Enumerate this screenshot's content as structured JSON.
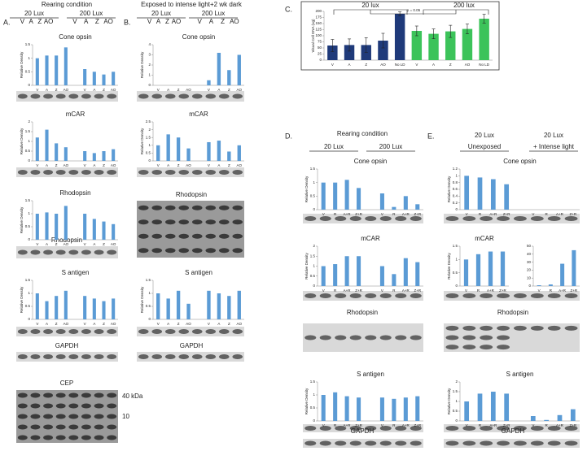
{
  "headers": [
    {
      "label": "A.",
      "title": "Rearing condition",
      "groups": [
        "20 Lux",
        "200 Lux"
      ],
      "lanes": [
        "V",
        "A",
        "Z",
        "AO"
      ]
    },
    {
      "label": "B.",
      "title": "Exposed to intense light+2 wk dark",
      "groups": [
        "20 Lux",
        "200 Lux"
      ],
      "lanes": [
        "V",
        "A",
        "Z",
        "AO"
      ]
    },
    {
      "label": "C."
    },
    {
      "label": "D.",
      "title": "Rearing condition",
      "groups": [
        "20 Lux",
        "200 Lux"
      ]
    },
    {
      "label": "E.",
      "groups": [
        "20 Lux",
        "20 Lux"
      ],
      "subgroups": [
        "Unexposed",
        "+ Intense light"
      ]
    }
  ],
  "blot_labels": [
    "Rhodopsin",
    "GAPDH",
    "CEP",
    "Rhodopsin",
    "GAPDH",
    "Rhodopsin",
    "GAPDH",
    "Rhodopsin",
    "GAPDH"
  ],
  "markers": [
    "40 kDa",
    "10"
  ],
  "chart_data": [
    {
      "type": "bar",
      "title": "Cone opsin",
      "ylabel": "Relative Density",
      "categories": [
        "V",
        "A",
        "Z",
        "AO",
        "V",
        "A",
        "Z",
        "AO"
      ],
      "values": [
        1.0,
        1.1,
        1.1,
        1.4,
        0.6,
        0.5,
        0.4,
        0.5
      ],
      "ylim": [
        0,
        1.5
      ],
      "yticks": [
        0,
        0.5,
        1,
        1.5
      ],
      "color": "#5b9bd5"
    },
    {
      "type": "bar",
      "title": "mCAR",
      "ylabel": "Relative Density",
      "categories": [
        "V",
        "A",
        "Z",
        "AO",
        "V",
        "A",
        "Z",
        "AO"
      ],
      "values": [
        1.2,
        1.6,
        0.9,
        0.7,
        0.5,
        0.4,
        0.5,
        0.6
      ],
      "ylim": [
        0,
        2
      ],
      "yticks": [
        0,
        0.5,
        1,
        1.5,
        2
      ],
      "color": "#5b9bd5"
    },
    {
      "type": "bar",
      "title": "Rhodopsin",
      "ylabel": "Relative Density",
      "categories": [
        "V",
        "A",
        "Z",
        "AO",
        "V",
        "A",
        "Z",
        "AO"
      ],
      "values": [
        1.0,
        1.05,
        1.0,
        1.3,
        1.0,
        0.8,
        0.7,
        0.6
      ],
      "ylim": [
        0,
        1.5
      ],
      "yticks": [
        0,
        0.5,
        1,
        1.5
      ],
      "color": "#5b9bd5"
    },
    {
      "type": "bar",
      "title": "S antigen",
      "ylabel": "Relative Density",
      "categories": [
        "V",
        "A",
        "Z",
        "AO",
        "V",
        "A",
        "Z",
        "AO"
      ],
      "values": [
        1.0,
        0.7,
        0.9,
        1.1,
        0.9,
        0.8,
        0.7,
        0.8
      ],
      "ylim": [
        0,
        1.5
      ],
      "yticks": [
        0,
        0.5,
        1,
        1.5
      ],
      "color": "#5b9bd5"
    },
    {
      "type": "bar",
      "title": "Cone opsin",
      "ylabel": "Relative Density",
      "categories": [
        "V",
        "A",
        "Z",
        "AO",
        "V",
        "A",
        "Z",
        "AO"
      ],
      "values": [
        0,
        0,
        0,
        0,
        0.5,
        3.2,
        1.5,
        3.0
      ],
      "ylim": [
        0,
        4
      ],
      "yticks": [
        0,
        1,
        2,
        3,
        4
      ],
      "color": "#5b9bd5"
    },
    {
      "type": "bar",
      "title": "mCAR",
      "ylabel": "Relative Density",
      "categories": [
        "V",
        "A",
        "Z",
        "AO",
        "V",
        "A",
        "Z",
        "AO"
      ],
      "values": [
        1.0,
        1.7,
        1.5,
        0.8,
        1.2,
        1.3,
        0.6,
        1.0
      ],
      "ylim": [
        0,
        2.5
      ],
      "yticks": [
        0,
        0.5,
        1,
        1.5,
        2,
        2.5
      ],
      "color": "#5b9bd5"
    },
    {
      "type": "bar",
      "title": "S antigen",
      "ylabel": "Relative Density",
      "categories": [
        "V",
        "A",
        "Z",
        "AO",
        "V",
        "A",
        "Z",
        "AO"
      ],
      "values": [
        1.0,
        0.8,
        1.1,
        0.6,
        1.1,
        1.0,
        0.9,
        1.1
      ],
      "ylim": [
        0,
        1.5
      ],
      "yticks": [
        0,
        0.5,
        1,
        1.5
      ],
      "color": "#5b9bd5"
    },
    {
      "type": "errbar",
      "ylabel": "Visual Cell DNA (ug)",
      "annotations": [
        "20 lux",
        "200 lux",
        "p = 0.05"
      ],
      "categories": [
        "V",
        "A",
        "Z",
        "AO",
        "No LD",
        "V",
        "A",
        "Z",
        "AO",
        "No LD"
      ],
      "values": [
        60,
        62,
        62,
        80,
        190,
        120,
        108,
        118,
        128,
        170
      ],
      "errors": [
        25,
        25,
        30,
        30,
        8,
        20,
        20,
        25,
        20,
        18
      ],
      "colors": [
        "#1f3a7a",
        "#1f3a7a",
        "#1f3a7a",
        "#1f3a7a",
        "#1f3a7a",
        "#3cc35a",
        "#3cc35a",
        "#3cc35a",
        "#3cc35a",
        "#3cc35a"
      ],
      "ylim": [
        0,
        200
      ],
      "yticks": [
        0,
        25,
        50,
        75,
        100,
        125,
        150,
        175,
        200
      ]
    },
    {
      "type": "bar",
      "title": "Cone opsin",
      "ylabel": "Relative Density",
      "categories": [
        "V",
        "R",
        "A+R",
        "Z+R",
        "V",
        "R",
        "A+R",
        "Z+R"
      ],
      "values": [
        1.0,
        1.0,
        1.1,
        0.8,
        0.6,
        0.1,
        0.5,
        0.2
      ],
      "ylim": [
        0,
        1.5
      ],
      "yticks": [
        0,
        0.5,
        1,
        1.5
      ],
      "color": "#5b9bd5"
    },
    {
      "type": "bar",
      "title": "mCAR",
      "ylabel": "Relative Density",
      "categories": [
        "V",
        "R",
        "A+R",
        "Z+R",
        "V",
        "R",
        "A+R",
        "Z+R"
      ],
      "values": [
        1.0,
        1.1,
        1.5,
        1.5,
        1.0,
        0.6,
        1.4,
        1.2
      ],
      "ylim": [
        0,
        2
      ],
      "yticks": [
        0,
        0.5,
        1,
        1.5,
        2
      ],
      "color": "#5b9bd5"
    },
    {
      "type": "bar",
      "title": "S antigen",
      "ylabel": "Relative Density",
      "categories": [
        "V",
        "R",
        "A+R",
        "Z+R",
        "V",
        "R",
        "A+R",
        "Z+R"
      ],
      "values": [
        1.0,
        1.1,
        0.95,
        0.9,
        0.9,
        0.85,
        0.9,
        0.95
      ],
      "ylim": [
        0,
        1.5
      ],
      "yticks": [
        0,
        0.5,
        1,
        1.5
      ],
      "color": "#5b9bd5"
    },
    {
      "type": "bar",
      "title": "Cone opsin",
      "ylabel": "Relative Density",
      "categories": [
        "V",
        "R",
        "A+R",
        "Z+R",
        "V",
        "R",
        "A+R",
        "Z+R"
      ],
      "values": [
        1.0,
        0.95,
        0.9,
        0.75,
        0,
        0,
        0,
        0
      ],
      "ylim": [
        0,
        1.2
      ],
      "yticks": [
        0,
        0.2,
        0.4,
        0.6,
        0.8,
        1,
        1.2
      ],
      "color": "#5b9bd5"
    },
    {
      "type": "bar",
      "title": "mCAR",
      "ylabel": "Relative Density",
      "categories": [
        "V",
        "R",
        "A+R",
        "Z+R"
      ],
      "values": [
        1.0,
        1.2,
        1.3,
        1.3
      ],
      "ylim": [
        0,
        1.5
      ],
      "yticks": [
        0,
        0.5,
        1,
        1.5
      ],
      "color": "#5b9bd5"
    },
    {
      "type": "bar",
      "categories": [
        "V",
        "R",
        "A+R",
        "Z+R"
      ],
      "values": [
        1,
        2,
        28,
        45
      ],
      "ylim": [
        0,
        50
      ],
      "yticks": [
        0,
        10,
        20,
        30,
        40,
        50
      ],
      "color": "#5b9bd5"
    },
    {
      "type": "bar",
      "title": "S antigen",
      "ylabel": "Relative Density",
      "categories": [
        "V",
        "R",
        "A+R",
        "Z+R",
        "V",
        "R",
        "A+R",
        "Z+R"
      ],
      "values": [
        1.0,
        1.4,
        1.5,
        1.4,
        0.25,
        0.05,
        0.3,
        0.6
      ],
      "ylim": [
        0,
        2
      ],
      "yticks": [
        0,
        0.5,
        1,
        1.5,
        2
      ],
      "color": "#5b9bd5"
    }
  ]
}
